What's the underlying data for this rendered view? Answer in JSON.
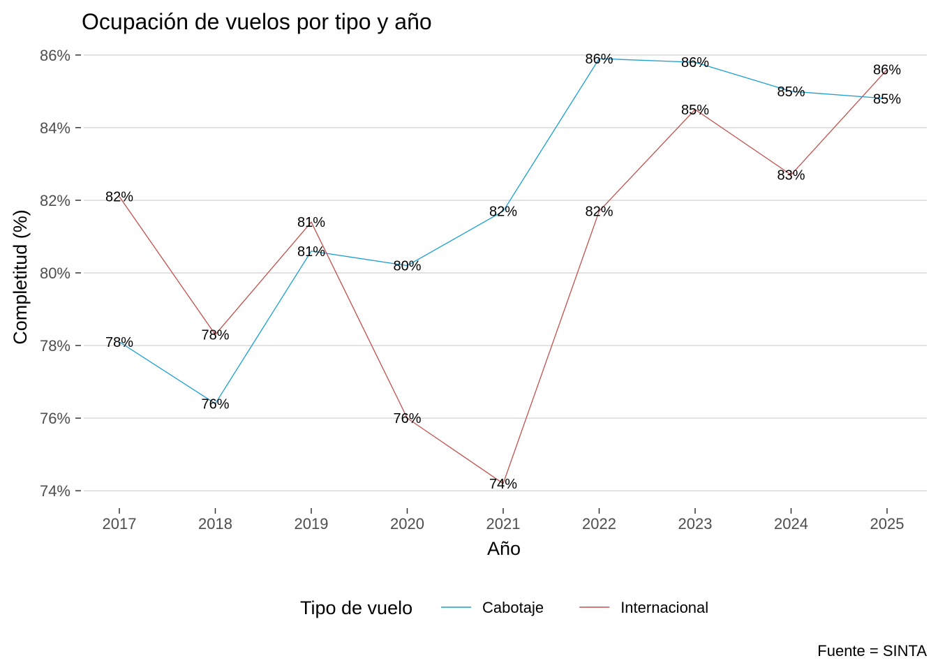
{
  "chart_data": {
    "type": "line",
    "title": "Ocupación de vuelos por tipo y año",
    "xlabel": "Año",
    "ylabel": "Completitud (%)",
    "x": [
      2017,
      2018,
      2019,
      2020,
      2021,
      2022,
      2023,
      2024,
      2025
    ],
    "x_tick_labels": [
      "2017",
      "2018",
      "2019",
      "2020",
      "2021",
      "2022",
      "2023",
      "2024",
      "2025"
    ],
    "ylim": [
      73.6,
      86.4
    ],
    "y_ticks": [
      74,
      76,
      78,
      80,
      82,
      84,
      86
    ],
    "y_tick_labels": [
      "74%",
      "76%",
      "78%",
      "80%",
      "82%",
      "84%",
      "86%"
    ],
    "grid": true,
    "legend_title": "Tipo de vuelo",
    "legend_position": "bottom",
    "caption": "Fuente = SINTA",
    "series": [
      {
        "name": "Cabotaje",
        "color": "#1b9fd2",
        "values": [
          78.1,
          76.4,
          80.6,
          80.2,
          81.7,
          85.9,
          85.8,
          85.0,
          84.8
        ],
        "labels": [
          "78%",
          "76%",
          "81%",
          "80%",
          "82%",
          "86%",
          "86%",
          "85%",
          "85%"
        ]
      },
      {
        "name": "Internacional",
        "color": "#c0504d",
        "values": [
          82.1,
          78.3,
          81.4,
          76.0,
          74.2,
          81.7,
          84.5,
          82.7,
          85.6
        ],
        "labels": [
          "82%",
          "78%",
          "81%",
          "76%",
          "74%",
          "82%",
          "85%",
          "83%",
          "86%"
        ]
      }
    ]
  }
}
